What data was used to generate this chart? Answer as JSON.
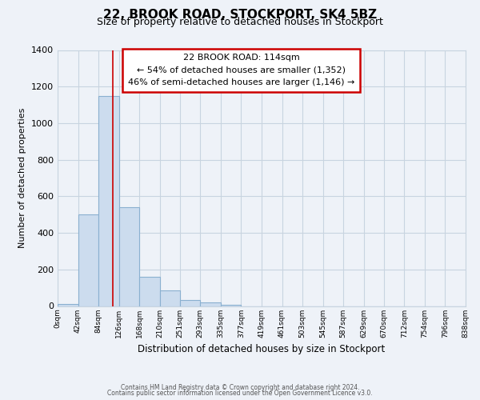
{
  "title_line1": "22, BROOK ROAD, STOCKPORT, SK4 5BZ",
  "title_line2": "Size of property relative to detached houses in Stockport",
  "xlabel": "Distribution of detached houses by size in Stockport",
  "ylabel": "Number of detached properties",
  "bar_edges": [
    0,
    42,
    84,
    126,
    168,
    210,
    251,
    293,
    335,
    377,
    419,
    461,
    503,
    545,
    587,
    629,
    670,
    712,
    754,
    796,
    838
  ],
  "bar_heights": [
    10,
    500,
    1150,
    540,
    160,
    85,
    35,
    20,
    5,
    0,
    0,
    0,
    0,
    0,
    0,
    0,
    0,
    0,
    0,
    0
  ],
  "bar_color": "#ccdcee",
  "bar_edge_color": "#8ab0d0",
  "grid_color": "#c8d4e0",
  "background_color": "#eef2f8",
  "vline_x": 114,
  "vline_color": "#cc0000",
  "ylim": [
    0,
    1400
  ],
  "yticks": [
    0,
    200,
    400,
    600,
    800,
    1000,
    1200,
    1400
  ],
  "xtick_labels": [
    "0sqm",
    "42sqm",
    "84sqm",
    "126sqm",
    "168sqm",
    "210sqm",
    "251sqm",
    "293sqm",
    "335sqm",
    "377sqm",
    "419sqm",
    "461sqm",
    "503sqm",
    "545sqm",
    "587sqm",
    "629sqm",
    "670sqm",
    "712sqm",
    "754sqm",
    "796sqm",
    "838sqm"
  ],
  "annotation_title": "22 BROOK ROAD: 114sqm",
  "annotation_line1": "← 54% of detached houses are smaller (1,352)",
  "annotation_line2": "46% of semi-detached houses are larger (1,146) →",
  "annotation_box_color": "#ffffff",
  "annotation_box_edge": "#cc0000",
  "footer_line1": "Contains HM Land Registry data © Crown copyright and database right 2024.",
  "footer_line2": "Contains public sector information licensed under the Open Government Licence v3.0."
}
